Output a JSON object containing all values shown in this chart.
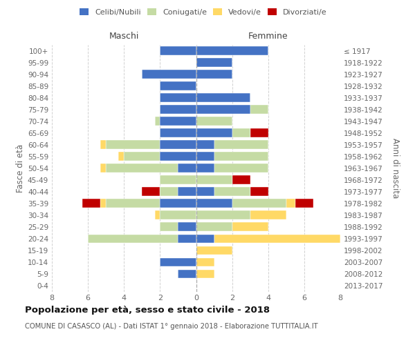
{
  "age_groups": [
    "0-4",
    "5-9",
    "10-14",
    "15-19",
    "20-24",
    "25-29",
    "30-34",
    "35-39",
    "40-44",
    "45-49",
    "50-54",
    "55-59",
    "60-64",
    "65-69",
    "70-74",
    "75-79",
    "80-84",
    "85-89",
    "90-94",
    "95-99",
    "100+"
  ],
  "birth_years": [
    "2013-2017",
    "2008-2012",
    "2003-2007",
    "1998-2002",
    "1993-1997",
    "1988-1992",
    "1983-1987",
    "1978-1982",
    "1973-1977",
    "1968-1972",
    "1963-1967",
    "1958-1962",
    "1953-1957",
    "1948-1952",
    "1943-1947",
    "1938-1942",
    "1933-1937",
    "1928-1932",
    "1923-1927",
    "1918-1922",
    "≤ 1917"
  ],
  "maschi": {
    "celibi": [
      2,
      0,
      3,
      2,
      2,
      2,
      2,
      2,
      2,
      2,
      1,
      0,
      1,
      2,
      0,
      1,
      1,
      0,
      2,
      1,
      0
    ],
    "coniugati": [
      0,
      0,
      0,
      0,
      0,
      0,
      0.3,
      0,
      3,
      2,
      4,
      2,
      1,
      3,
      2,
      1,
      5,
      0,
      0,
      0,
      0
    ],
    "vedovi": [
      0,
      0,
      0,
      0,
      0,
      0,
      0,
      0,
      0.3,
      0.3,
      0.3,
      0,
      0,
      0.3,
      0.3,
      0,
      0,
      0,
      0,
      0,
      0
    ],
    "divorziati": [
      0,
      0,
      0,
      0,
      0,
      0,
      0,
      0,
      0,
      0,
      0,
      0,
      1,
      1,
      0,
      0,
      0,
      0,
      0,
      0,
      0
    ]
  },
  "femmine": {
    "celibi": [
      4,
      2,
      2,
      0,
      3,
      3,
      0,
      2,
      1,
      1,
      1,
      0,
      1,
      2,
      0,
      0,
      1,
      0,
      0,
      0,
      0
    ],
    "coniugati": [
      0,
      0,
      0,
      0,
      0,
      1,
      2,
      1,
      3,
      3,
      3,
      2,
      2,
      3,
      3,
      2,
      0,
      0,
      0,
      0,
      0
    ],
    "vedovi": [
      0,
      0,
      0,
      0,
      0,
      0,
      0,
      0,
      0,
      0,
      0,
      0,
      0,
      0.5,
      2,
      2,
      7,
      2,
      1,
      1,
      0
    ],
    "divorziati": [
      0,
      0,
      0,
      0,
      0,
      0,
      0,
      1,
      0,
      0,
      0,
      1,
      1,
      1,
      0,
      0,
      0,
      0,
      0,
      0,
      0
    ]
  },
  "colors": {
    "celibi": "#4472c4",
    "coniugati": "#c5dba4",
    "vedovi": "#ffd966",
    "divorziati": "#c00000"
  },
  "xlim": 8,
  "title": "Popolazione per età, sesso e stato civile - 2018",
  "subtitle": "COMUNE DI CASASCO (AL) - Dati ISTAT 1° gennaio 2018 - Elaborazione TUTTITALIA.IT",
  "ylabel_left": "Fasce di età",
  "ylabel_right": "Anni di nascita",
  "label_maschi": "Maschi",
  "label_femmine": "Femmine",
  "bg_color": "#ffffff",
  "grid_color": "#cccccc",
  "legend": [
    "Celibi/Nubili",
    "Coniugati/e",
    "Vedovi/e",
    "Divorziati/e"
  ]
}
